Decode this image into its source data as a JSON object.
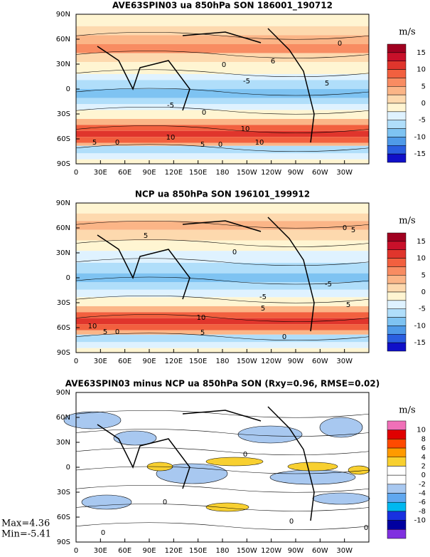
{
  "panels": [
    {
      "title": "AVE63SPIN03 ua 850hPa SON 186001_190712",
      "yticks": [
        "90N",
        "60N",
        "30N",
        "0",
        "30S",
        "60S",
        "90S"
      ],
      "xticks": [
        "0",
        "30E",
        "60E",
        "90E",
        "120E",
        "150E",
        "180",
        "150W",
        "120W",
        "90W",
        "60W",
        "30W"
      ],
      "colorbar": {
        "unit": "m/s",
        "labels": [
          "15",
          "10",
          "5",
          "0",
          "-5",
          "-10",
          "-15"
        ],
        "colors": [
          "#a00020",
          "#c8102a",
          "#e0352c",
          "#f2603f",
          "#f88c62",
          "#fbb587",
          "#fdd9ae",
          "#fff5d2",
          "#dff2ff",
          "#b0defa",
          "#7ec3f2",
          "#4f9ae8",
          "#2a5ee0",
          "#1010c8"
        ]
      },
      "contour_labels": [
        "0",
        "6",
        "0",
        "-5",
        "5",
        "0",
        "-5",
        "10",
        "10",
        "5",
        "0",
        "5",
        "0",
        "10"
      ]
    },
    {
      "title": "NCP ua 850hPa SON 196101_199912",
      "yticks": [
        "90N",
        "60N",
        "30N",
        "0",
        "30S",
        "60S",
        "90S"
      ],
      "xticks": [
        "0",
        "30E",
        "60E",
        "90E",
        "120E",
        "150E",
        "180",
        "150W",
        "120W",
        "90W",
        "60W",
        "30W"
      ],
      "colorbar": {
        "unit": "m/s",
        "labels": [
          "15",
          "10",
          "5",
          "0",
          "-5",
          "-10",
          "-15"
        ],
        "colors": [
          "#a00020",
          "#c8102a",
          "#e0352c",
          "#f2603f",
          "#f88c62",
          "#fbb587",
          "#fdd9ae",
          "#fff5d2",
          "#dff2ff",
          "#b0defa",
          "#7ec3f2",
          "#4f9ae8",
          "#2a5ee0",
          "#1010c8"
        ]
      },
      "contour_labels": [
        "5",
        "0",
        "5",
        "0",
        "-5",
        "-5",
        "5",
        "5",
        "10",
        "10",
        "5",
        "0",
        "5",
        "0"
      ]
    },
    {
      "title": "AVE63SPIN03 minus NCP ua 850hPa SON (Rxy=0.96, RMSE=0.02)",
      "yticks": [
        "90N",
        "60N",
        "30N",
        "0",
        "30S",
        "60S",
        "90S"
      ],
      "xticks": [
        "0",
        "30E",
        "60E",
        "90E",
        "120E",
        "150E",
        "180",
        "150W",
        "120W",
        "90W",
        "60W",
        "30W"
      ],
      "colorbar": {
        "unit": "m/s",
        "labels": [
          "10",
          "8",
          "6",
          "4",
          "2",
          "0",
          "-2",
          "-4",
          "-6",
          "-8",
          "-10"
        ],
        "colors": [
          "#f070b8",
          "#e00000",
          "#ff4a00",
          "#ff9a00",
          "#f8d030",
          "#ffffff",
          "#ffffff",
          "#a8c8f0",
          "#60a8f0",
          "#00b8f0",
          "#1830e0",
          "#0000a0",
          "#8030e0"
        ]
      },
      "contour_labels": [
        "0",
        "0",
        "0",
        "0",
        "0"
      ]
    }
  ],
  "stats": {
    "max": "Max=4.36",
    "min": "Min=-5.41"
  }
}
